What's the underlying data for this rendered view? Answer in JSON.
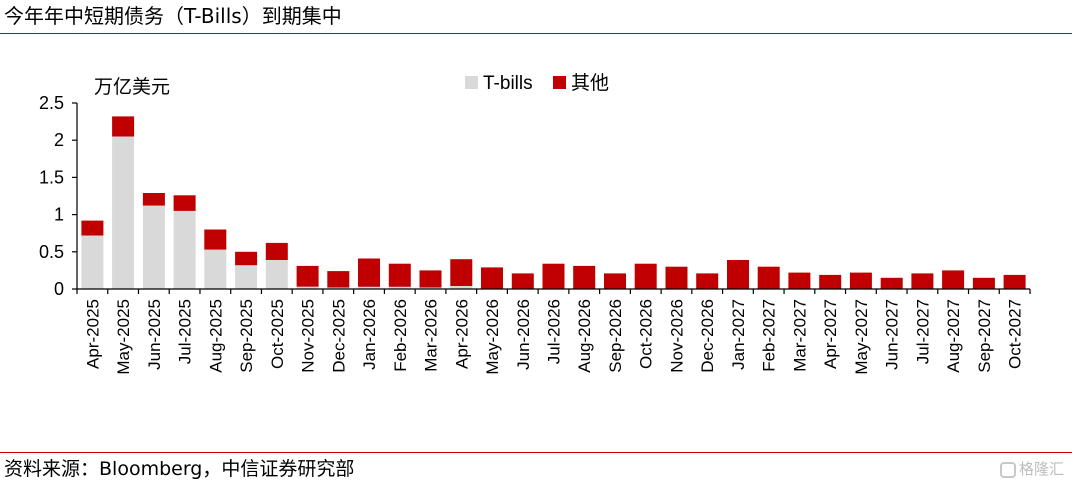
{
  "header": {
    "title": "今年年中短期债务（T-Bills）到期集中"
  },
  "footer": {
    "source": "资料来源：Bloomberg，中信证券研究部",
    "watermark": "格隆汇"
  },
  "colors": {
    "tbills": "#d9d9d9",
    "other": "#c00000",
    "rule": "#c00000"
  },
  "chart_data": {
    "type": "bar",
    "stacked": true,
    "unit_label": "万亿美元",
    "ylim": [
      0,
      2.5
    ],
    "yticks": [
      "0",
      "0.5",
      "1",
      "1.5",
      "2",
      "2.5"
    ],
    "legend_position": "top",
    "categories": [
      "Apr-2025",
      "May-2025",
      "Jun-2025",
      "Jul-2025",
      "Aug-2025",
      "Sep-2025",
      "Oct-2025",
      "Nov-2025",
      "Dec-2025",
      "Jan-2026",
      "Feb-2026",
      "Mar-2026",
      "Apr-2026",
      "May-2026",
      "Jun-2026",
      "Jul-2026",
      "Aug-2026",
      "Sep-2026",
      "Oct-2026",
      "Nov-2026",
      "Dec-2026",
      "Jan-2027",
      "Feb-2027",
      "Mar-2027",
      "Apr-2027",
      "May-2027",
      "Jun-2027",
      "Jul-2027",
      "Aug-2027",
      "Sep-2027",
      "Oct-2027"
    ],
    "series": [
      {
        "name": "T-bills",
        "values": [
          0.72,
          2.05,
          1.12,
          1.05,
          0.53,
          0.32,
          0.39,
          0.03,
          0.02,
          0.03,
          0.03,
          0.02,
          0.04,
          0,
          0,
          0,
          0,
          0,
          0,
          0,
          0,
          0,
          0,
          0,
          0,
          0,
          0,
          0,
          0,
          0,
          0
        ]
      },
      {
        "name": "其他",
        "values": [
          0.2,
          0.27,
          0.17,
          0.21,
          0.27,
          0.18,
          0.23,
          0.28,
          0.22,
          0.38,
          0.31,
          0.23,
          0.36,
          0.29,
          0.21,
          0.34,
          0.31,
          0.21,
          0.34,
          0.3,
          0.21,
          0.39,
          0.3,
          0.22,
          0.19,
          0.22,
          0.15,
          0.21,
          0.25,
          0.15,
          0.19
        ]
      }
    ]
  }
}
